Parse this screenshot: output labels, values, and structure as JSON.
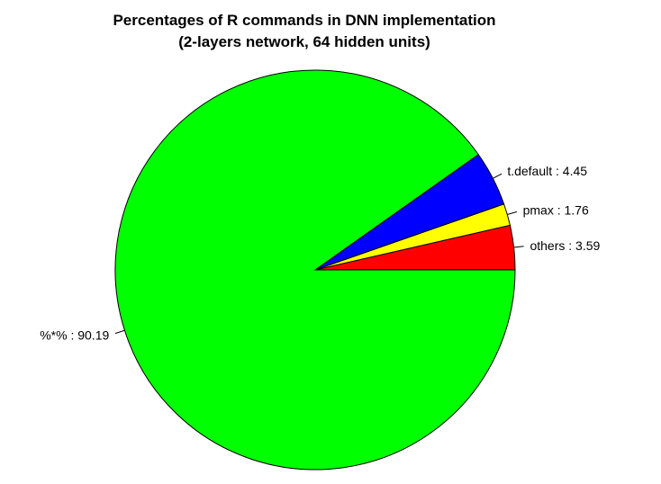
{
  "chart_data": {
    "type": "pie",
    "title": "Percentages of R commands in DNN implementation",
    "subtitle": "(2-layers network, 64 hidden units)",
    "direction": "counterclockwise",
    "start_angle_deg": 0,
    "slices": [
      {
        "label": "others : 3.59",
        "name": "others",
        "value": 3.59,
        "color": "#FF0000"
      },
      {
        "label": "pmax : 1.76",
        "name": "pmax",
        "value": 1.76,
        "color": "#FFFF00"
      },
      {
        "label": "t.default : 4.45",
        "name": "t.default",
        "value": 4.45,
        "color": "#0000FF"
      },
      {
        "label": "%*% : 90.19",
        "name": "%*%",
        "value": 90.19,
        "color": "#00FF00"
      }
    ]
  }
}
